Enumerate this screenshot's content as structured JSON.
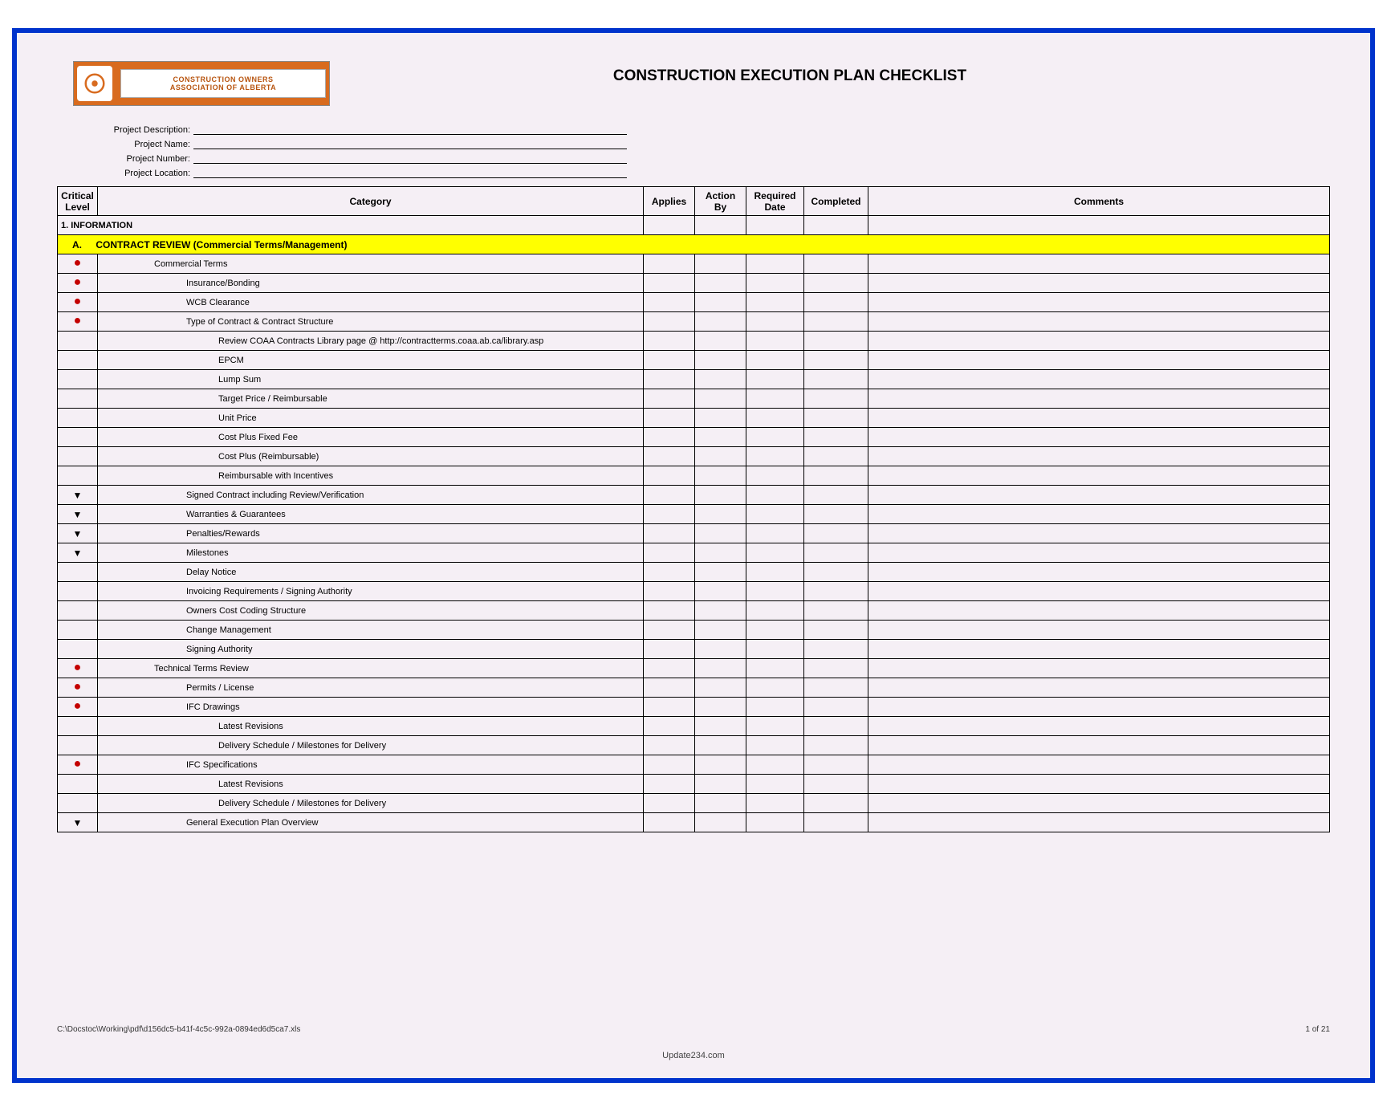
{
  "logo": {
    "line1": "CONSTRUCTION OWNERS",
    "line2": "ASSOCIATION OF ALBERTA"
  },
  "title": "CONSTRUCTION EXECUTION PLAN CHECKLIST",
  "meta": {
    "desc_label": "Project Description:",
    "name_label": "Project Name:",
    "num_label": "Project Number:",
    "loc_label": "Project Location:"
  },
  "headers": {
    "critical": "Critical Level",
    "category": "Category",
    "applies": "Applies",
    "action": "Action By",
    "required": "Required Date",
    "completed": "Completed",
    "comments": "Comments"
  },
  "section": {
    "number_title": "1. INFORMATION"
  },
  "subsection": {
    "letter": "A.",
    "title": "CONTRACT REVIEW (Commercial Terms/Management)"
  },
  "rows": [
    {
      "marker": "dot",
      "indent": 1,
      "text": "Commercial Terms"
    },
    {
      "marker": "dot",
      "indent": 2,
      "text": "Insurance/Bonding"
    },
    {
      "marker": "dot",
      "indent": 2,
      "text": "WCB Clearance"
    },
    {
      "marker": "dot",
      "indent": 2,
      "text": "Type of Contract & Contract Structure"
    },
    {
      "marker": "",
      "indent": 3,
      "text": "Review COAA Contracts Library page @ http://contractterms.coaa.ab.ca/library.asp"
    },
    {
      "marker": "",
      "indent": 3,
      "text": "EPCM"
    },
    {
      "marker": "",
      "indent": 3,
      "text": "Lump Sum"
    },
    {
      "marker": "",
      "indent": 3,
      "text": "Target Price / Reimbursable"
    },
    {
      "marker": "",
      "indent": 3,
      "text": "Unit Price"
    },
    {
      "marker": "",
      "indent": 3,
      "text": "Cost Plus Fixed Fee"
    },
    {
      "marker": "",
      "indent": 3,
      "text": "Cost Plus (Reimbursable)"
    },
    {
      "marker": "",
      "indent": 3,
      "text": "Reimbursable with Incentives"
    },
    {
      "marker": "tri",
      "indent": 2,
      "text": "Signed Contract including Review/Verification"
    },
    {
      "marker": "tri",
      "indent": 2,
      "text": "Warranties & Guarantees"
    },
    {
      "marker": "tri",
      "indent": 2,
      "text": "Penalties/Rewards"
    },
    {
      "marker": "tri",
      "indent": 2,
      "text": "Milestones"
    },
    {
      "marker": "",
      "indent": 2,
      "text": "Delay Notice"
    },
    {
      "marker": "",
      "indent": 2,
      "text": "Invoicing Requirements / Signing Authority"
    },
    {
      "marker": "",
      "indent": 2,
      "text": "Owners Cost Coding Structure"
    },
    {
      "marker": "",
      "indent": 2,
      "text": "Change Management"
    },
    {
      "marker": "",
      "indent": 2,
      "text": "Signing Authority"
    },
    {
      "marker": "dot",
      "indent": 1,
      "text": "Technical Terms Review"
    },
    {
      "marker": "dot",
      "indent": 2,
      "text": "Permits / License"
    },
    {
      "marker": "dot",
      "indent": 2,
      "text": "IFC Drawings"
    },
    {
      "marker": "",
      "indent": 3,
      "text": "Latest Revisions"
    },
    {
      "marker": "",
      "indent": 3,
      "text": "Delivery Schedule / Milestones for Delivery"
    },
    {
      "marker": "dot",
      "indent": 2,
      "text": "IFC Specifications"
    },
    {
      "marker": "",
      "indent": 3,
      "text": "Latest Revisions"
    },
    {
      "marker": "",
      "indent": 3,
      "text": "Delivery Schedule / Milestones for Delivery"
    },
    {
      "marker": "tri",
      "indent": 2,
      "text": "General Execution Plan Overview"
    }
  ],
  "footer": {
    "path": "C:\\Docstoc\\Working\\pdf\\d156dc5-b41f-4c5c-992a-0894ed6d5ca7.xls",
    "page": "1 of 21"
  },
  "watermark": "Update234.com"
}
